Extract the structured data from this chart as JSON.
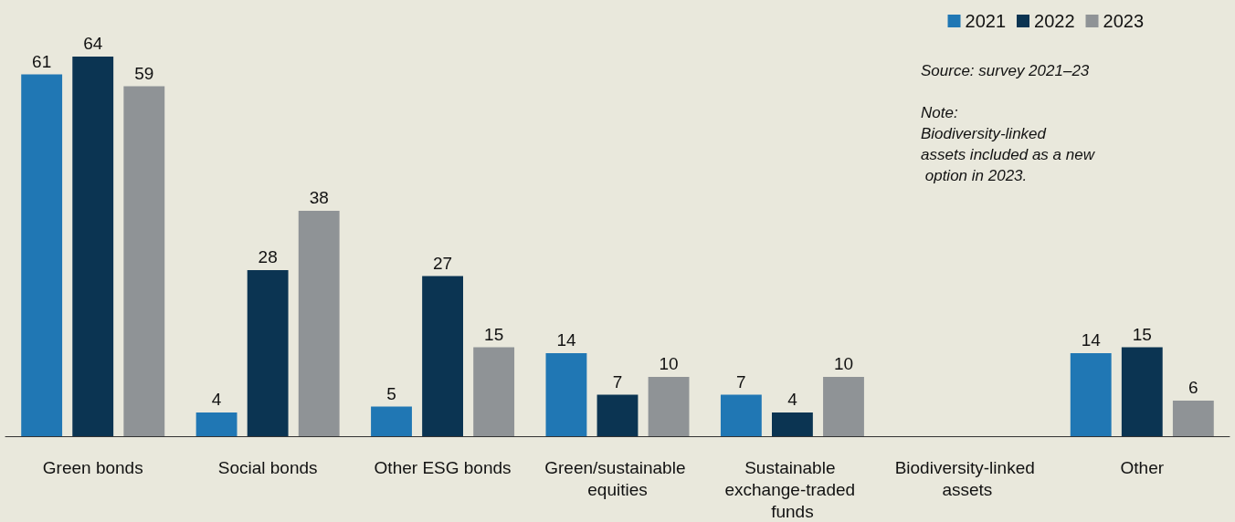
{
  "chart_data": {
    "type": "bar",
    "categories": [
      "Green bonds",
      "Social bonds",
      "Other ESG bonds",
      "Green/sustainable equities",
      "Sustainable exchange-traded funds",
      "Biodiversity-linked assets",
      "Other"
    ],
    "series": [
      {
        "name": "2021",
        "color": "#2077b4",
        "values": [
          61,
          4,
          5,
          14,
          7,
          null,
          14
        ]
      },
      {
        "name": "2022",
        "color": "#0b3452",
        "values": [
          64,
          28,
          27,
          7,
          4,
          null,
          15
        ]
      },
      {
        "name": "2023",
        "color": "#8f9396",
        "values": [
          59,
          38,
          15,
          10,
          10,
          null,
          6
        ]
      }
    ],
    "data_labels": true,
    "legend": "top right",
    "grid": false,
    "annotations": [
      "Source: survey 2021–23",
      "Note: Biodiversity-linked assets included as a new option in 2023."
    ]
  }
}
